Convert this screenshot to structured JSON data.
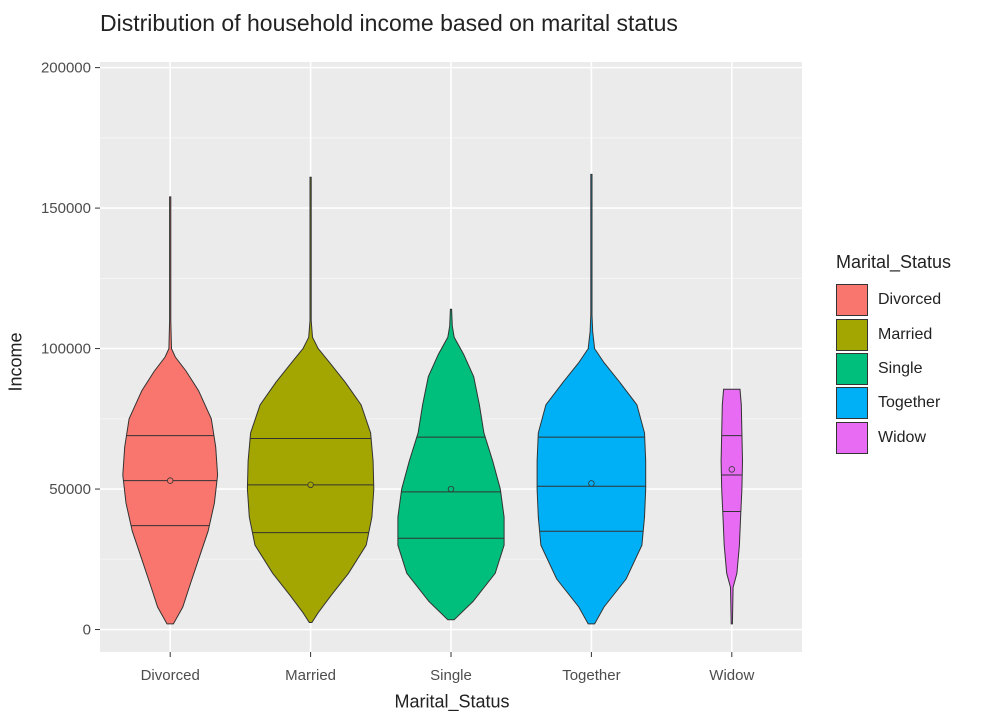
{
  "chart_data": {
    "type": "violin",
    "title": "Distribution of household income based on marital status",
    "xlabel": "Marital_Status",
    "ylabel": "Income",
    "ylim": [
      -8000,
      202000
    ],
    "yticks": [
      0,
      50000,
      100000,
      150000,
      200000
    ],
    "ytick_labels": [
      "0",
      "50000",
      "100000",
      "150000",
      "200000"
    ],
    "grid": true,
    "legend": {
      "title": "Marital_Status",
      "placement": "right"
    },
    "categories": [
      "Divorced",
      "Married",
      "Single",
      "Together",
      "Widow"
    ],
    "series": [
      {
        "name": "Divorced",
        "color": "#F8766D",
        "min": 2000,
        "max": 154000,
        "q1": 37000,
        "median": 53000,
        "q3": 69000,
        "mean": 53000,
        "density": [
          [
            2000,
            0.05
          ],
          [
            8000,
            0.2
          ],
          [
            15000,
            0.3
          ],
          [
            25000,
            0.45
          ],
          [
            35000,
            0.6
          ],
          [
            45000,
            0.7
          ],
          [
            55000,
            0.75
          ],
          [
            65000,
            0.72
          ],
          [
            75000,
            0.65
          ],
          [
            85000,
            0.45
          ],
          [
            92000,
            0.25
          ],
          [
            97000,
            0.08
          ],
          [
            100000,
            0.02
          ],
          [
            110000,
            0.01
          ],
          [
            154000,
            0.01
          ]
        ]
      },
      {
        "name": "Married",
        "color": "#A3A500",
        "min": 2500,
        "max": 161000,
        "q1": 34500,
        "median": 51500,
        "q3": 68000,
        "mean": 51500,
        "density": [
          [
            2500,
            0.02
          ],
          [
            6000,
            0.12
          ],
          [
            12000,
            0.32
          ],
          [
            20000,
            0.6
          ],
          [
            30000,
            0.88
          ],
          [
            40000,
            0.97
          ],
          [
            50000,
            1.0
          ],
          [
            60000,
            0.99
          ],
          [
            70000,
            0.95
          ],
          [
            80000,
            0.8
          ],
          [
            88000,
            0.55
          ],
          [
            95000,
            0.3
          ],
          [
            100000,
            0.12
          ],
          [
            104000,
            0.03
          ],
          [
            110000,
            0.01
          ],
          [
            161000,
            0.01
          ]
        ]
      },
      {
        "name": "Single",
        "color": "#00BF7D",
        "min": 3500,
        "max": 114000,
        "q1": 32500,
        "median": 49000,
        "q3": 68500,
        "mean": 50000,
        "density": [
          [
            3500,
            0.05
          ],
          [
            10000,
            0.35
          ],
          [
            20000,
            0.7
          ],
          [
            30000,
            0.84
          ],
          [
            40000,
            0.84
          ],
          [
            50000,
            0.78
          ],
          [
            60000,
            0.66
          ],
          [
            70000,
            0.52
          ],
          [
            80000,
            0.45
          ],
          [
            90000,
            0.36
          ],
          [
            98000,
            0.2
          ],
          [
            104000,
            0.05
          ],
          [
            108000,
            0.02
          ],
          [
            114000,
            0.01
          ]
        ]
      },
      {
        "name": "Together",
        "color": "#00B0F6",
        "min": 2000,
        "max": 162000,
        "q1": 35000,
        "median": 51000,
        "q3": 68500,
        "mean": 52000,
        "density": [
          [
            2000,
            0.05
          ],
          [
            8000,
            0.2
          ],
          [
            18000,
            0.55
          ],
          [
            30000,
            0.8
          ],
          [
            40000,
            0.84
          ],
          [
            50000,
            0.86
          ],
          [
            60000,
            0.86
          ],
          [
            70000,
            0.84
          ],
          [
            80000,
            0.72
          ],
          [
            88000,
            0.45
          ],
          [
            95000,
            0.2
          ],
          [
            100000,
            0.05
          ],
          [
            106000,
            0.02
          ],
          [
            112000,
            0.01
          ],
          [
            162000,
            0.01
          ]
        ]
      },
      {
        "name": "Widow",
        "color": "#E76BF3",
        "min": 2000,
        "max": 85500,
        "q1": 42000,
        "median": 55000,
        "q3": 69000,
        "mean": 57000,
        "density": [
          [
            2000,
            0.01
          ],
          [
            15000,
            0.02
          ],
          [
            20000,
            0.08
          ],
          [
            30000,
            0.12
          ],
          [
            40000,
            0.14
          ],
          [
            50000,
            0.16
          ],
          [
            60000,
            0.17
          ],
          [
            70000,
            0.16
          ],
          [
            80000,
            0.15
          ],
          [
            85500,
            0.13
          ]
        ]
      }
    ]
  }
}
